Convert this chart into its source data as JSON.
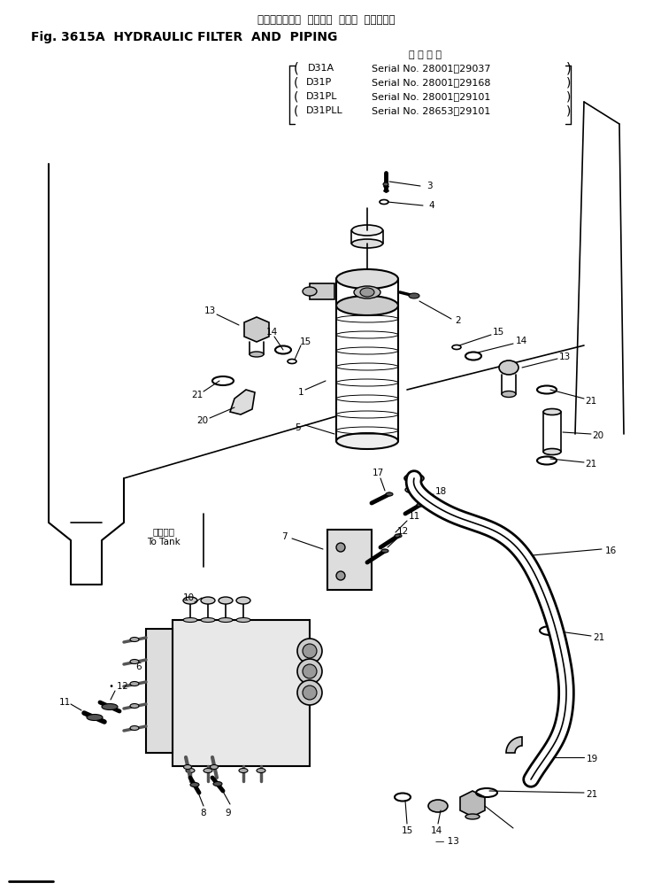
{
  "title_japanese": "ハイドロリック  フィルタ  および  パイピング",
  "title_english": "Fig. 3615A  HYDRAULIC FILTER  AND  PIPING",
  "serial_header": "適 用 号 機",
  "serial_lines": [
    [
      "D31A",
      "Serial No. 28001～29037"
    ],
    [
      "D31P",
      "Serial No. 28001～29168"
    ],
    [
      "D31PL",
      "Serial No. 28001～29101"
    ],
    [
      "D31PLL",
      "Serial No. 28653～29101"
    ]
  ],
  "tank_label_jp": "タンクへ",
  "tank_label_en": "To Tank",
  "bg_color": "#ffffff"
}
